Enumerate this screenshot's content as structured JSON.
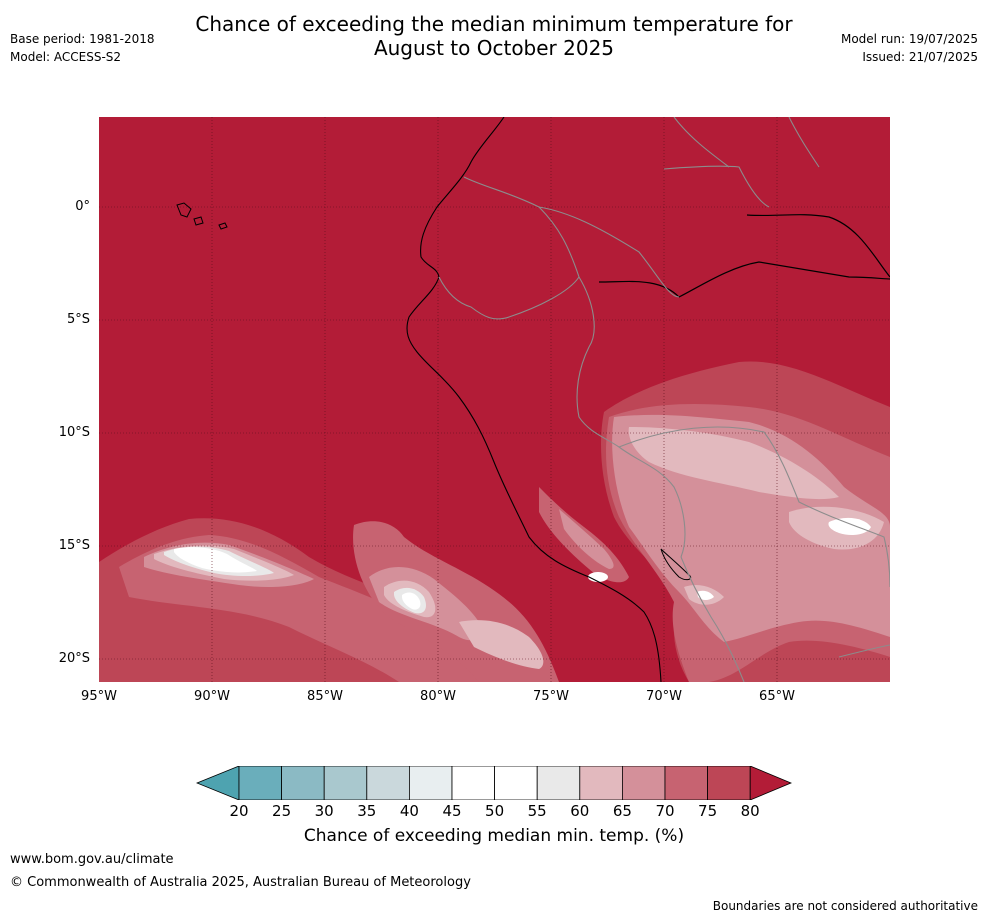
{
  "header": {
    "title_line1": "Chance of exceeding the median minimum temperature for",
    "title_line2": "August to October 2025",
    "base_period": "Base period: 1981-2018",
    "model": "Model: ACCESS-S2",
    "model_run": "Model run: 19/07/2025",
    "issued": "Issued: 21/07/2025"
  },
  "map": {
    "lat_labels": [
      "0°",
      "5°S",
      "10°S",
      "15°S",
      "20°S"
    ],
    "lon_labels": [
      "95°W",
      "90°W",
      "85°W",
      "80°W",
      "75°W",
      "70°W",
      "65°W"
    ],
    "background_color": "#b31c37"
  },
  "colorbar": {
    "label": "Chance of exceeding median min. temp. (%)",
    "ticks": [
      "20",
      "25",
      "30",
      "35",
      "40",
      "45",
      "50",
      "55",
      "60",
      "65",
      "70",
      "75",
      "80"
    ],
    "colors": [
      "#4ea3b0",
      "#6aaebb",
      "#8bbac4",
      "#a9c8ce",
      "#cad8dc",
      "#e8eef0",
      "#ffffff",
      "#ffffff",
      "#e9e9e9",
      "#e2b9be",
      "#d4909a",
      "#c76371",
      "#bd4656",
      "#b31c37"
    ]
  },
  "footer": {
    "url": "www.bom.gov.au/climate",
    "copyright": "© Commonwealth of Australia 2025, Australian Bureau of Meteorology",
    "note": "Boundaries are not considered authoritative"
  }
}
